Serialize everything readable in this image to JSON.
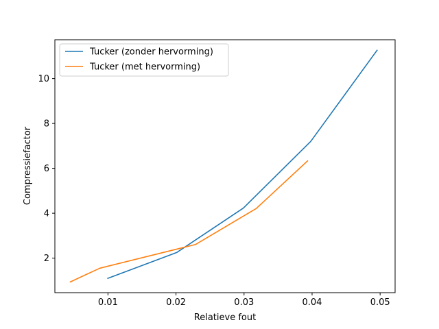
{
  "chart_data": {
    "type": "line",
    "title": "",
    "xlabel": "Relatieve fout",
    "ylabel": "Compressiefactor",
    "xlim": [
      0.0022,
      0.0522
    ],
    "ylim": [
      0.46,
      11.73
    ],
    "xticks": [
      0.01,
      0.02,
      0.03,
      0.04,
      0.05
    ],
    "xtick_labels": [
      "0.01",
      "0.02",
      "0.03",
      "0.04",
      "0.05"
    ],
    "yticks": [
      2,
      4,
      6,
      8,
      10
    ],
    "ytick_labels": [
      "2",
      "4",
      "6",
      "8",
      "10"
    ],
    "grid": false,
    "legend_position": "top-left",
    "series": [
      {
        "name": "Tucker (zonder hervorming)",
        "color": "#1f77b4",
        "x": [
          0.0099,
          0.0201,
          0.0299,
          0.0398,
          0.0496
        ],
        "y": [
          1.09,
          2.25,
          4.23,
          7.2,
          11.28
        ]
      },
      {
        "name": "Tucker (met hervorming)",
        "color": "#ff7f0e",
        "x": [
          0.0044,
          0.0088,
          0.0229,
          0.0318,
          0.0394
        ],
        "y": [
          0.93,
          1.55,
          2.61,
          4.21,
          6.35
        ]
      }
    ]
  }
}
